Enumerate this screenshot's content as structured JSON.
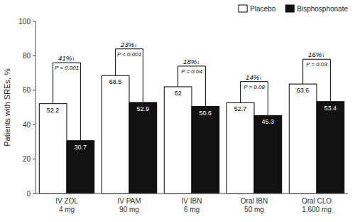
{
  "chart_data": {
    "type": "bar",
    "categories": [
      "IV ZOL\n4 mg",
      "IV PAM\n90 mg",
      "IV IBN\n6 mg",
      "Oral IBN\n50 mg",
      "Oral CLO\n1,600 mg"
    ],
    "series": [
      {
        "name": "Placebo",
        "color": "#ffffff",
        "values": [
          52.2,
          68.5,
          62.0,
          52.7,
          63.6
        ]
      },
      {
        "name": "Bisphosphonate",
        "color": "#111111",
        "values": [
          30.7,
          52.9,
          50.6,
          45.3,
          53.4
        ]
      }
    ],
    "annotations": [
      {
        "text": "41%↓",
        "p_value": "P = 0.001",
        "y": 76
      },
      {
        "text": "23%↓",
        "p_value": "P < 0.001",
        "y": 84
      },
      {
        "text": "18%↓",
        "p_value": "P = 0.04",
        "y": 74
      },
      {
        "text": "14%↓",
        "p_value": "P = 0.08",
        "y": 65
      },
      {
        "text": "16%↓",
        "p_value": "P = 0.03",
        "y": 78
      }
    ],
    "ylabel": "Patients with SREs, %",
    "ylim": [
      0,
      100
    ],
    "yticks": [
      0,
      20,
      40,
      60,
      80,
      100
    ],
    "data_labels": true,
    "legend": "upper right"
  }
}
